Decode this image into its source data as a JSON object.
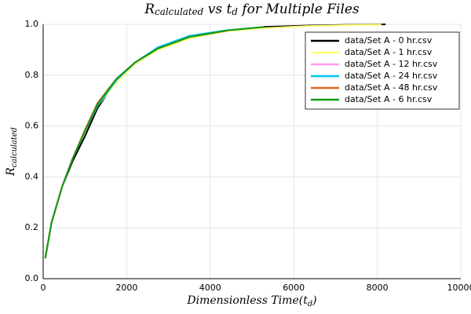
{
  "chart_data": {
    "type": "line",
    "title": [
      "R",
      "calculated",
      " vs ",
      "t",
      "d",
      " for Multiple Files"
    ],
    "xlabel": [
      "Dimensionless Time(",
      "t",
      "d",
      ")"
    ],
    "ylabel": [
      "R",
      "calculated"
    ],
    "xlim": [
      0,
      10000
    ],
    "xticks": [
      0,
      2000,
      4000,
      6000,
      8000,
      10000
    ],
    "ylim": [
      0,
      1
    ],
    "yticks": [
      {
        "value": 0,
        "label": "0.0"
      },
      0.2,
      0.4,
      0.6,
      0.8,
      {
        "value": 1,
        "label": "1.0"
      }
    ],
    "grid": true,
    "legend": "top-right",
    "series": [
      {
        "name": "data/Set A - 0 hr.csv",
        "color": "#000000",
        "x": [
          50,
          200,
          450,
          700,
          1000,
          1300,
          1750,
          2200,
          2750,
          3500,
          4400,
          5300,
          6300,
          7300,
          8200
        ],
        "values": [
          0.08,
          0.22,
          0.36,
          0.46,
          0.56,
          0.67,
          0.78,
          0.85,
          0.905,
          0.95,
          0.975,
          0.99,
          0.995,
          0.998,
          1.0
        ]
      },
      {
        "name": "data/Set A - 1 hr.csv",
        "color": "#ffff70",
        "x": [
          50,
          200,
          450,
          700,
          1000,
          1300,
          1750,
          2200,
          2750,
          3500,
          4400,
          5300,
          6300,
          7300,
          8100
        ],
        "values": [
          0.08,
          0.22,
          0.36,
          0.47,
          0.58,
          0.68,
          0.77,
          0.845,
          0.9,
          0.945,
          0.973,
          0.985,
          0.993,
          0.997,
          0.999
        ]
      },
      {
        "name": "data/Set A - 12 hr.csv",
        "color": "#ff99ee",
        "x": [
          50,
          200,
          450,
          700,
          1000,
          1300,
          1750,
          2200,
          2750,
          3500,
          4400
        ],
        "values": [
          0.08,
          0.22,
          0.36,
          0.47,
          0.58,
          0.68,
          0.78,
          0.85,
          0.91,
          0.95,
          0.975
        ]
      },
      {
        "name": "data/Set A - 24 hr.csv",
        "color": "#00c8f0",
        "x": [
          50,
          200,
          450,
          700,
          1000,
          1300,
          1750,
          2200,
          2750,
          3500,
          4400,
          5300
        ],
        "values": [
          0.08,
          0.22,
          0.36,
          0.47,
          0.58,
          0.68,
          0.78,
          0.85,
          0.91,
          0.955,
          0.977,
          0.99
        ]
      },
      {
        "name": "data/Set A - 48 hr.csv",
        "color": "#e0651a",
        "x": [
          50,
          200,
          450,
          700,
          1000,
          1300,
          1750,
          2200,
          2750,
          3500,
          4400
        ],
        "values": [
          0.08,
          0.22,
          0.36,
          0.47,
          0.585,
          0.69,
          0.785,
          0.85,
          0.905,
          0.95,
          0.975
        ]
      },
      {
        "name": "data/Set A - 6 hr.csv",
        "color": "#119911",
        "x": [
          50,
          200,
          450,
          700,
          1000,
          1300,
          1750,
          2200,
          2750,
          3500,
          4400,
          5300
        ],
        "values": [
          0.08,
          0.22,
          0.36,
          0.47,
          0.58,
          0.685,
          0.785,
          0.85,
          0.905,
          0.95,
          0.976,
          0.99
        ]
      }
    ]
  }
}
